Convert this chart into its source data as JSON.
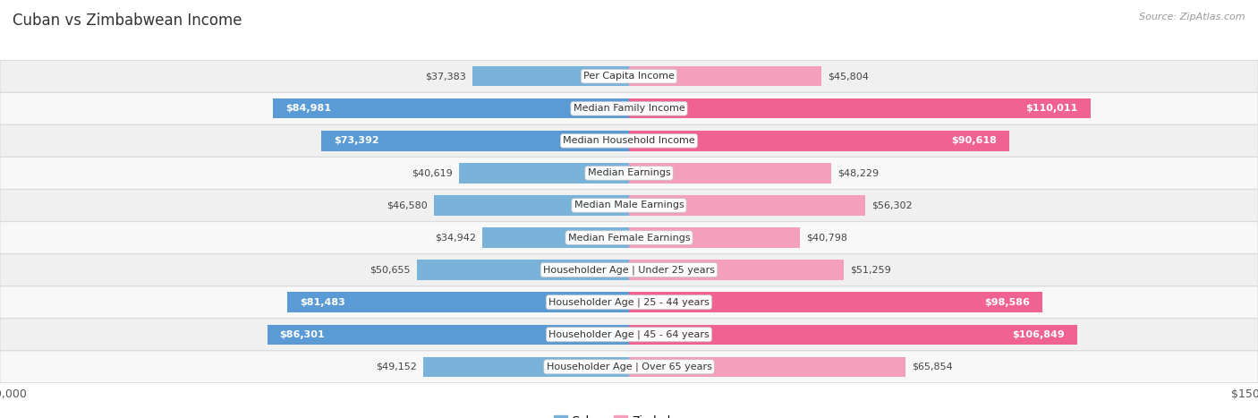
{
  "title": "Cuban vs Zimbabwean Income",
  "source": "Source: ZipAtlas.com",
  "categories": [
    "Per Capita Income",
    "Median Family Income",
    "Median Household Income",
    "Median Earnings",
    "Median Male Earnings",
    "Median Female Earnings",
    "Householder Age | Under 25 years",
    "Householder Age | 25 - 44 years",
    "Householder Age | 45 - 64 years",
    "Householder Age | Over 65 years"
  ],
  "cuban_values": [
    37383,
    84981,
    73392,
    40619,
    46580,
    34942,
    50655,
    81483,
    86301,
    49152
  ],
  "zimbabwean_values": [
    45804,
    110011,
    90618,
    48229,
    56302,
    40798,
    51259,
    98586,
    106849,
    65854
  ],
  "cuban_color": "#7ab3d9",
  "cuban_color_strong": "#5b9bd5",
  "zimbabwean_color": "#f4a0bc",
  "zimbabwean_color_strong": "#f06292",
  "max_val": 150000,
  "bg_color": "#ffffff",
  "row_bg_even": "#f0f0f0",
  "row_bg_odd": "#f8f8f8",
  "row_border": "#d8d8d8",
  "title_fontsize": 12,
  "source_fontsize": 8,
  "axis_label_fontsize": 9,
  "bar_label_fontsize": 8,
  "category_fontsize": 8,
  "legend_fontsize": 9,
  "cuban_strong_threshold": 70000,
  "zimbabwean_strong_threshold": 85000
}
